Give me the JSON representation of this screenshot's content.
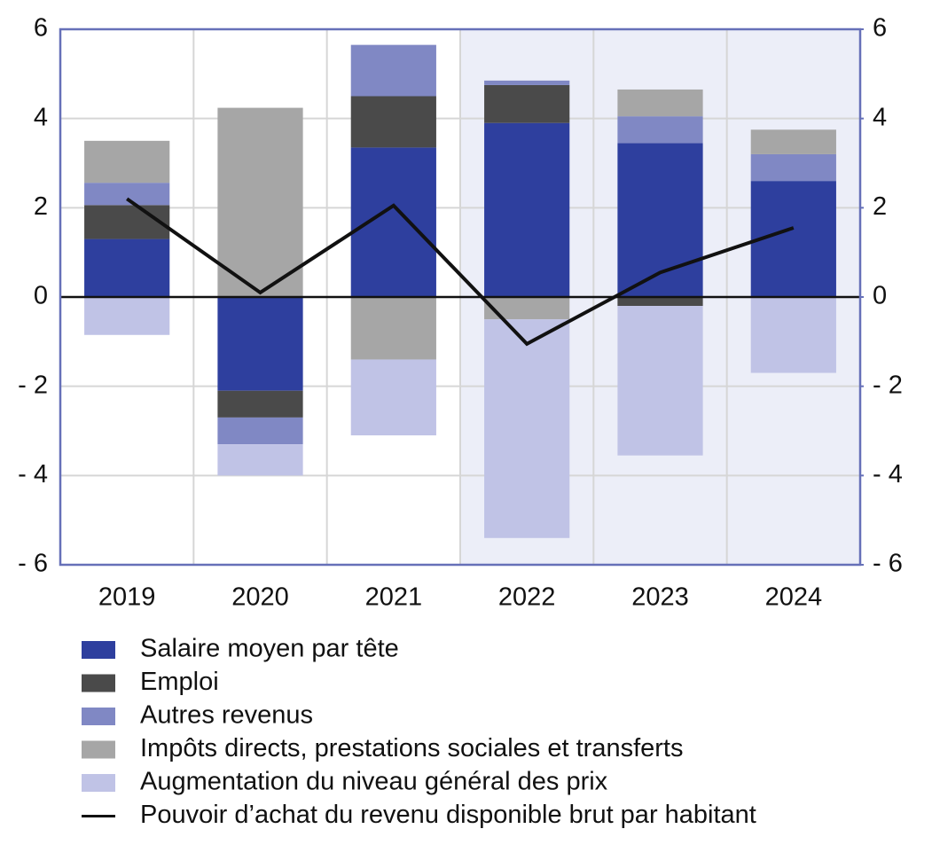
{
  "chart_data": {
    "type": "bar",
    "stacked": true,
    "categories": [
      "2019",
      "2020",
      "2021",
      "2022",
      "2023",
      "2024"
    ],
    "series": [
      {
        "name": "Salaire moyen par tête",
        "color": "#2e3f9e",
        "values": [
          1.3,
          -2.1,
          3.35,
          3.9,
          3.45,
          2.6
        ]
      },
      {
        "name": "Emploi",
        "color": "#4a4a4a",
        "values": [
          0.76,
          -0.6,
          1.15,
          0.85,
          -0.2,
          0
        ]
      },
      {
        "name": "Autres revenus",
        "color": "#8088c4",
        "values": [
          0.5,
          -0.6,
          1.15,
          0.1,
          0.6,
          0.6
        ]
      },
      {
        "name": "Impôts directs, prestations sociales et transferts",
        "color": "#a6a6a6",
        "values": [
          0.94,
          4.24,
          -1.4,
          -0.5,
          0.6,
          0.55
        ]
      },
      {
        "name": "Augmentation du niveau général des prix",
        "color": "#c0c3e6",
        "values": [
          -0.85,
          -0.7,
          -1.7,
          -4.9,
          -3.35,
          -1.7
        ]
      },
      {
        "name": "Pouvoir d’achat du revenu disponible brut par habitant",
        "color": "#111111",
        "type": "line",
        "values": [
          2.2,
          0.1,
          2.05,
          -1.05,
          0.55,
          1.55
        ]
      }
    ],
    "ylim": [
      -6,
      6
    ],
    "yticks": [
      {
        "value": -6,
        "label": "- 6"
      },
      {
        "value": -4,
        "label": "- 4"
      },
      {
        "value": -2,
        "label": "- 2"
      },
      0,
      2,
      4,
      6
    ],
    "y2lim": [
      -6,
      6
    ],
    "y2ticks": [
      {
        "value": -6,
        "label": "- 6"
      },
      {
        "value": -4,
        "label": "- 4"
      },
      {
        "value": -2,
        "label": "- 2"
      },
      0,
      2,
      4,
      6
    ],
    "grid": true
  }
}
